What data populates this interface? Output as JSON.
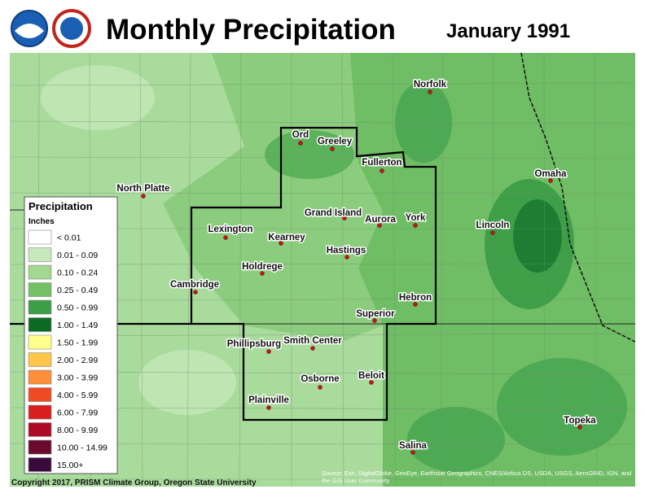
{
  "title": "Monthly Precipitation",
  "subtitle": "January 1991",
  "legend": {
    "title": "Precipitation",
    "units": "Inches",
    "items": [
      {
        "label": "< 0.01",
        "color": "#ffffff"
      },
      {
        "label": "0.01 - 0.09",
        "color": "#c8e9bb"
      },
      {
        "label": "0.10 - 0.24",
        "color": "#a3d891"
      },
      {
        "label": "0.25 - 0.49",
        "color": "#74c067"
      },
      {
        "label": "0.50 - 0.99",
        "color": "#3c9f48"
      },
      {
        "label": "1.00 - 1.49",
        "color": "#0b6b22"
      },
      {
        "label": "1.50 - 1.99",
        "color": "#ffff8c"
      },
      {
        "label": "2.00 - 2.99",
        "color": "#ffc64a"
      },
      {
        "label": "3.00 - 3.99",
        "color": "#ff8f3a"
      },
      {
        "label": "4.00 - 5.99",
        "color": "#f04a24"
      },
      {
        "label": "6.00 - 7.99",
        "color": "#d81e1e"
      },
      {
        "label": "8.00 - 9.99",
        "color": "#ae0a28"
      },
      {
        "label": "10.00 - 14.99",
        "color": "#6a0a2c"
      },
      {
        "label": "15.00+",
        "color": "#3a0a3c"
      }
    ]
  },
  "cities": [
    "Norfolk",
    "Ord",
    "Greeley",
    "Fullerton",
    "Omaha",
    "North Platte",
    "Grand Island",
    "Aurora",
    "York",
    "Lincoln",
    "Lexington",
    "Kearney",
    "Hastings",
    "Holdrege",
    "Cambridge",
    "Hebron",
    "Superior",
    "Phillipsburg",
    "Smith Center",
    "Beloit",
    "Osborne",
    "Topeka",
    "Plainville",
    "Salina"
  ],
  "copyright": "Copyright 2017, PRISM Climate Group, Oregon State University",
  "source": "Source: Esri, DigitalGlobe, GeoEye, Earthstar Geographics, CNES/Airbus DS, USDA, USGS, AeroGRID, IGN, and the GIS User Community"
}
